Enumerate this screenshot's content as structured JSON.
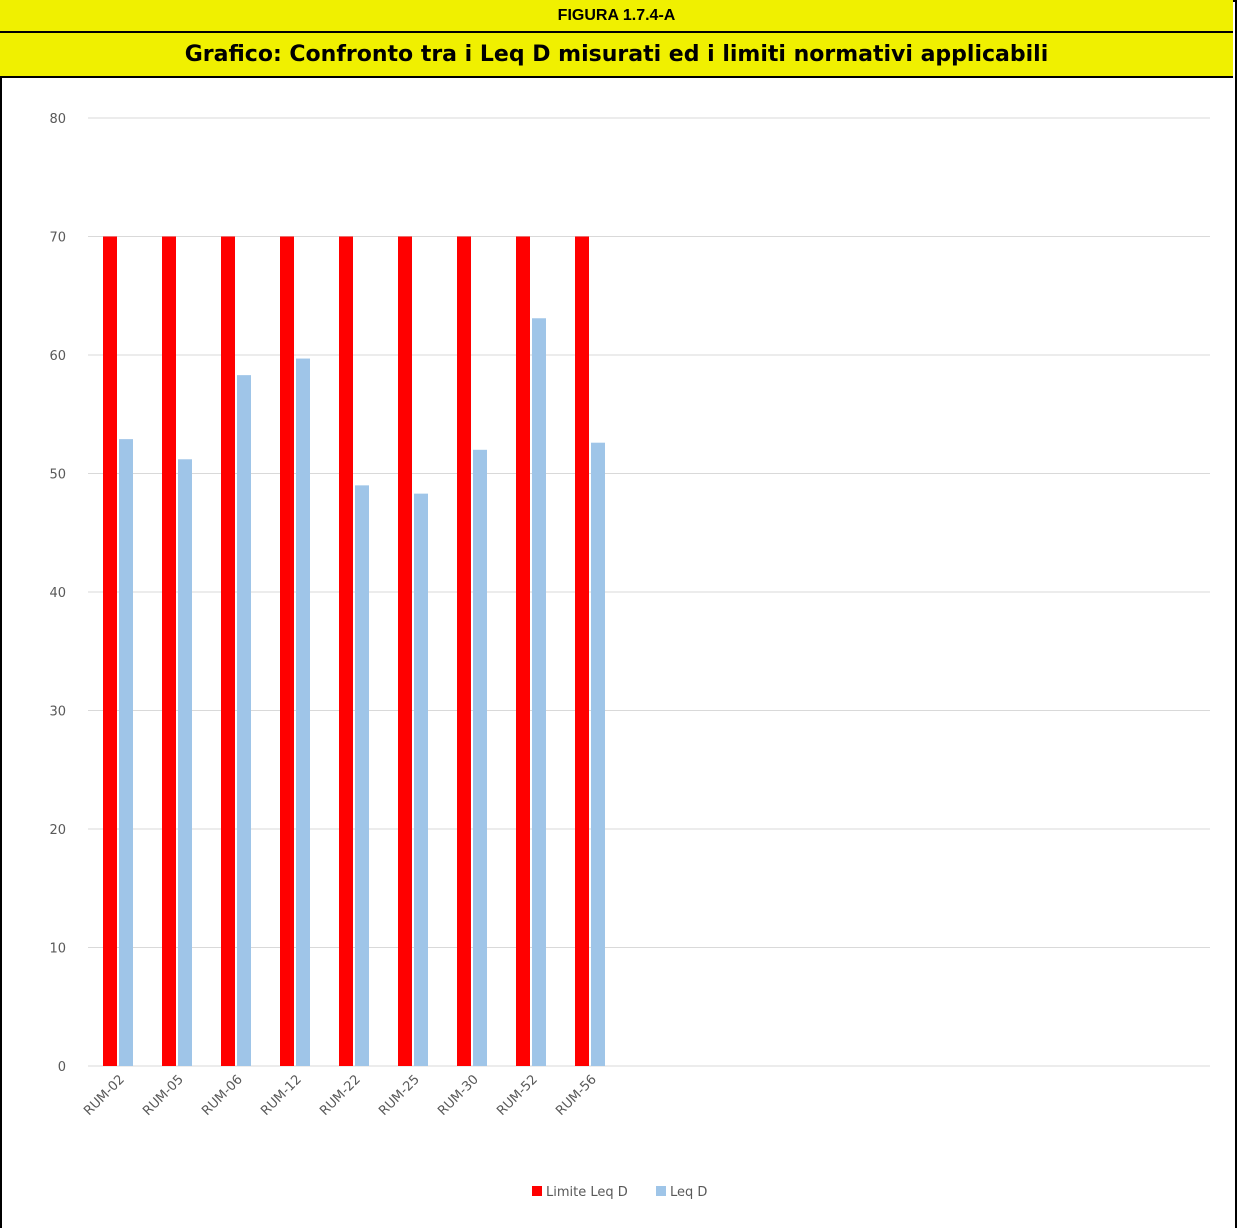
{
  "figure_label": "FIGURA 1.7.4-A",
  "figure_title": "Grafico: Confronto tra i Leq D misurati ed i limiti normativi applicabili",
  "colors": {
    "header_bg": "#f0f000",
    "limit": "#ff0000",
    "leq": "#9fc5e8",
    "grid": "#d9d9d9"
  },
  "chart_data": {
    "type": "bar",
    "title": "",
    "xlabel": "",
    "ylabel": "",
    "ylim": [
      0,
      80
    ],
    "yticks": [
      0,
      10,
      20,
      30,
      40,
      50,
      60,
      70,
      80
    ],
    "grid": true,
    "legend_position": "bottom",
    "categories": [
      "RUM-02",
      "RUM-05",
      "RUM-06",
      "RUM-12",
      "RUM-22",
      "RUM-25",
      "RUM-30",
      "RUM-52",
      "RUM-56"
    ],
    "series": [
      {
        "name": "Limite Leq D",
        "color": "#ff0000",
        "values": [
          70,
          70,
          70,
          70,
          70,
          70,
          70,
          70,
          70
        ]
      },
      {
        "name": "Leq D",
        "color": "#9fc5e8",
        "values": [
          52.9,
          51.2,
          58.3,
          59.7,
          49.0,
          48.3,
          52.0,
          63.1,
          52.6
        ]
      }
    ]
  }
}
